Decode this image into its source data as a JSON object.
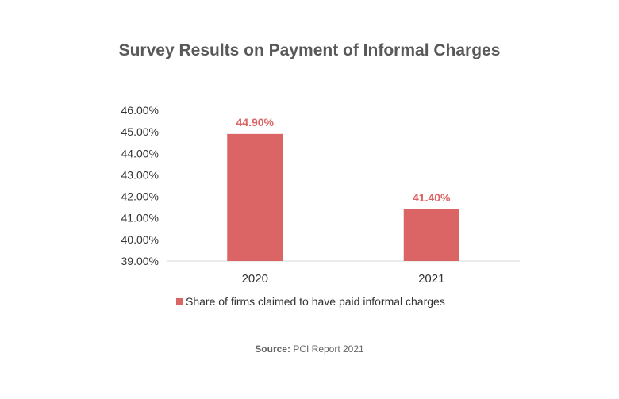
{
  "chart_data": {
    "type": "bar",
    "title": "Survey Results on Payment of Informal Charges",
    "categories": [
      "2020",
      "2021"
    ],
    "series": [
      {
        "name": "Share of firms claimed to have paid informal charges",
        "values": [
          44.9,
          41.4
        ],
        "data_labels": [
          "44.90%",
          "41.40%"
        ],
        "color": "#DB6464"
      }
    ],
    "ylim": [
      39,
      46
    ],
    "yticks": [
      "39.00%",
      "40.00%",
      "41.00%",
      "42.00%",
      "43.00%",
      "44.00%",
      "45.00%",
      "46.00%"
    ],
    "xlabel": "",
    "ylabel": "",
    "grid": false,
    "legend_position": "bottom"
  },
  "source": {
    "label": "Source:",
    "text": " PCI Report 2021"
  }
}
